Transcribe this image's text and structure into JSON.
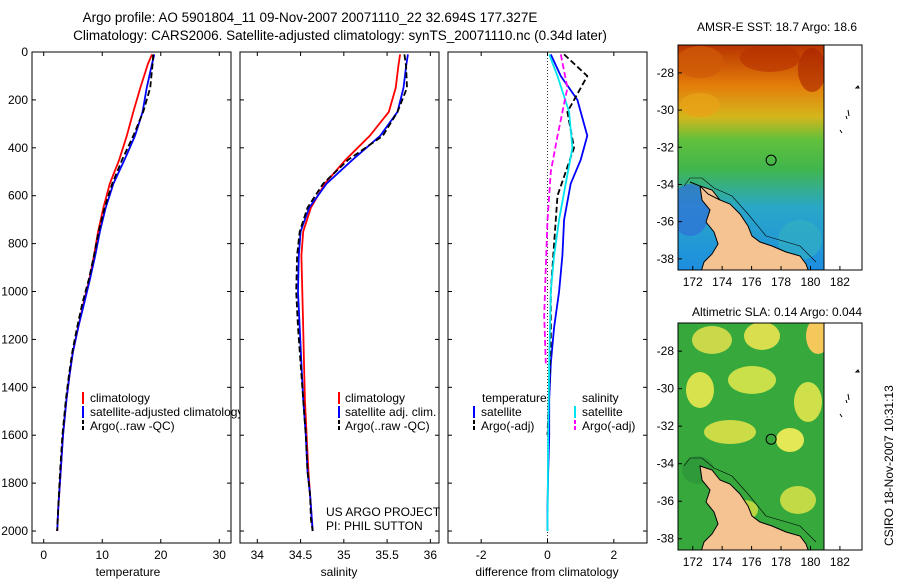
{
  "header": {
    "title_line1": "Argo profile: AO 5901804_11 09-Nov-2007 20071110_22 32.694S 177.327E",
    "title_line2": "Climatology: CARS2006. Satellite-adjusted climatology: synTS_20071110.nc (0.34d later)"
  },
  "footer": {
    "project_line1": "US ARGO PROJECT",
    "project_line2": "PI: PHIL SUTTON",
    "stamp": "CSIRO 18-Nov-2007 10:31:13"
  },
  "colors": {
    "climatology": "#ff0000",
    "satellite": "#0000ff",
    "argo": "#000000",
    "sat_diff_salt": "#00e5ee",
    "argo_diff_salt": "#ff00ff",
    "land": "#f5c291"
  },
  "chart_data": [
    {
      "type": "line",
      "name": "temperature",
      "xlabel": "temperature",
      "ylabel": "",
      "xlim": [
        -2,
        32
      ],
      "ylim": [
        2050,
        0
      ],
      "xticks": [
        0,
        10,
        20,
        30
      ],
      "yticks": [
        0,
        200,
        400,
        600,
        800,
        1000,
        1200,
        1400,
        1600,
        1800,
        2000
      ],
      "legend": [
        "climatology",
        "satellite-adjusted climatology",
        "Argo(..raw -QC)"
      ],
      "series": [
        {
          "name": "climatology",
          "x": [
            18.5,
            17.8,
            16.5,
            15.3,
            14.2,
            12.9,
            11.3,
            10.2,
            9.3,
            8.6,
            7.8,
            6.8,
            5.9,
            5.0,
            4.4,
            3.9,
            3.3,
            2.9,
            2.5,
            2.3
          ],
          "y": [
            10,
            50,
            150,
            250,
            350,
            450,
            550,
            650,
            750,
            850,
            950,
            1050,
            1150,
            1250,
            1350,
            1450,
            1600,
            1750,
            1900,
            2000
          ]
        },
        {
          "name": "satellite-adjusted climatology",
          "x": [
            18.9,
            18.5,
            17.6,
            16.9,
            15.6,
            13.8,
            11.9,
            10.6,
            9.6,
            8.8,
            7.9,
            6.9,
            5.9,
            5.0,
            4.4,
            3.9,
            3.3,
            2.9,
            2.5,
            2.3
          ],
          "y": [
            10,
            50,
            150,
            250,
            350,
            450,
            550,
            650,
            750,
            850,
            950,
            1050,
            1150,
            1250,
            1350,
            1450,
            1600,
            1750,
            1900,
            2000
          ]
        },
        {
          "name": "Argo(..raw -QC)",
          "x": [
            18.7,
            18.6,
            18.2,
            17.0,
            15.3,
            13.4,
            11.7,
            10.4,
            9.4,
            8.6,
            7.7,
            6.6,
            5.7,
            4.9,
            4.3,
            3.8,
            3.2,
            2.8,
            2.5,
            2.3
          ],
          "y": [
            10,
            50,
            150,
            250,
            350,
            450,
            550,
            650,
            750,
            850,
            950,
            1050,
            1150,
            1250,
            1350,
            1450,
            1600,
            1750,
            1900,
            2000
          ]
        }
      ]
    },
    {
      "type": "line",
      "name": "salinity",
      "xlabel": "salinity",
      "ylabel": "",
      "xlim": [
        33.8,
        36.1
      ],
      "ylim": [
        2050,
        0
      ],
      "xticks": [
        34,
        34.5,
        35,
        35.5,
        36
      ],
      "legend": [
        "climatology",
        "satellite adj. clim.",
        "Argo(..raw -QC)"
      ],
      "series": [
        {
          "name": "climatology",
          "x": [
            35.65,
            35.63,
            35.6,
            35.52,
            35.3,
            35.02,
            34.78,
            34.62,
            34.53,
            34.51,
            34.52,
            34.53,
            34.54,
            34.55,
            34.57,
            34.59,
            34.61,
            34.63,
            34.64
          ],
          "y": [
            10,
            60,
            150,
            250,
            350,
            450,
            550,
            650,
            750,
            850,
            1000,
            1150,
            1300,
            1450,
            1600,
            1750,
            1850,
            1950,
            2000
          ]
        },
        {
          "name": "satellite adj. clim.",
          "x": [
            35.74,
            35.72,
            35.69,
            35.62,
            35.42,
            35.1,
            34.8,
            34.6,
            34.5,
            34.48,
            34.47,
            34.49,
            34.51,
            34.53,
            34.56,
            34.58,
            34.61,
            34.63,
            34.64
          ],
          "y": [
            10,
            60,
            150,
            250,
            350,
            450,
            550,
            650,
            750,
            850,
            1000,
            1150,
            1300,
            1450,
            1600,
            1750,
            1850,
            1950,
            2000
          ]
        },
        {
          "name": "Argo(..raw -QC)",
          "x": [
            35.7,
            35.72,
            35.73,
            35.62,
            35.45,
            35.05,
            34.76,
            34.58,
            34.49,
            34.46,
            34.45,
            34.47,
            34.5,
            34.53,
            34.56,
            34.58,
            34.61,
            34.62,
            34.64
          ],
          "y": [
            10,
            60,
            150,
            250,
            350,
            450,
            550,
            650,
            750,
            850,
            1000,
            1150,
            1300,
            1450,
            1600,
            1750,
            1850,
            1950,
            2000
          ]
        }
      ]
    },
    {
      "type": "line",
      "name": "difference",
      "xlabel": "difference from climatology",
      "ylabel": "",
      "xlim": [
        -3,
        3
      ],
      "ylim": [
        2050,
        0
      ],
      "xticks": [
        -2,
        0,
        2
      ],
      "legend_left_header": "temperature",
      "legend_right_header": "salinity",
      "legend": [
        "satellite",
        "Argo(-adj)",
        "satellite",
        "Argo(-adj)"
      ],
      "series": [
        {
          "name": "satellite (temperature)",
          "x": [
            0.1,
            0.4,
            0.9,
            1.2,
            1.0,
            0.7,
            0.5,
            0.45,
            0.35,
            0.2,
            0.1,
            0.05,
            0.05,
            0.02,
            0.0,
            0.0
          ],
          "y": [
            10,
            100,
            200,
            350,
            450,
            550,
            700,
            850,
            1000,
            1150,
            1300,
            1450,
            1600,
            1750,
            1900,
            2000
          ]
        },
        {
          "name": "Argo(-adj) (temperature)",
          "x": [
            0.5,
            1.2,
            0.6,
            0.8,
            0.3,
            0.2,
            0.1,
            0.1,
            0.05,
            0.0
          ],
          "y": [
            10,
            100,
            250,
            400,
            600,
            800,
            1000,
            1200,
            1400,
            1600
          ]
        },
        {
          "name": "satellite (salinity)",
          "x": [
            0.05,
            0.3,
            0.65,
            0.75,
            0.55,
            0.35,
            0.2,
            0.1,
            0.05,
            0.02,
            0.0
          ],
          "y": [
            10,
            100,
            250,
            400,
            550,
            700,
            850,
            1000,
            1300,
            1600,
            2000
          ]
        },
        {
          "name": "Argo(-adj) (salinity)",
          "x": [
            0.4,
            0.6,
            0.3,
            0.1,
            0.0,
            -0.05,
            -0.1,
            -0.05
          ],
          "y": [
            10,
            150,
            350,
            500,
            700,
            900,
            1100,
            1300
          ]
        }
      ]
    },
    {
      "type": "heatmap",
      "name": "sst_map",
      "title": "AMSR-E SST: 18.7  Argo: 18.6",
      "xticks": [
        172,
        174,
        176,
        178,
        180,
        182
      ],
      "yticks": [
        -28,
        -30,
        -32,
        -34,
        -36,
        -38
      ],
      "xlim": [
        171,
        183.5
      ],
      "ylim": [
        -38.6,
        -26.5
      ],
      "argo_position": {
        "lon": 177.327,
        "lat": -32.694
      }
    },
    {
      "type": "heatmap",
      "name": "sla_map",
      "title": "Altimetric SLA: 0.14  Argo: 0.044",
      "xticks": [
        172,
        174,
        176,
        178,
        180,
        182
      ],
      "yticks": [
        -28,
        -30,
        -32,
        -34,
        -36,
        -38
      ],
      "xlim": [
        171,
        183.5
      ],
      "ylim": [
        -38.6,
        -26.5
      ],
      "argo_position": {
        "lon": 177.327,
        "lat": -32.694
      }
    }
  ]
}
